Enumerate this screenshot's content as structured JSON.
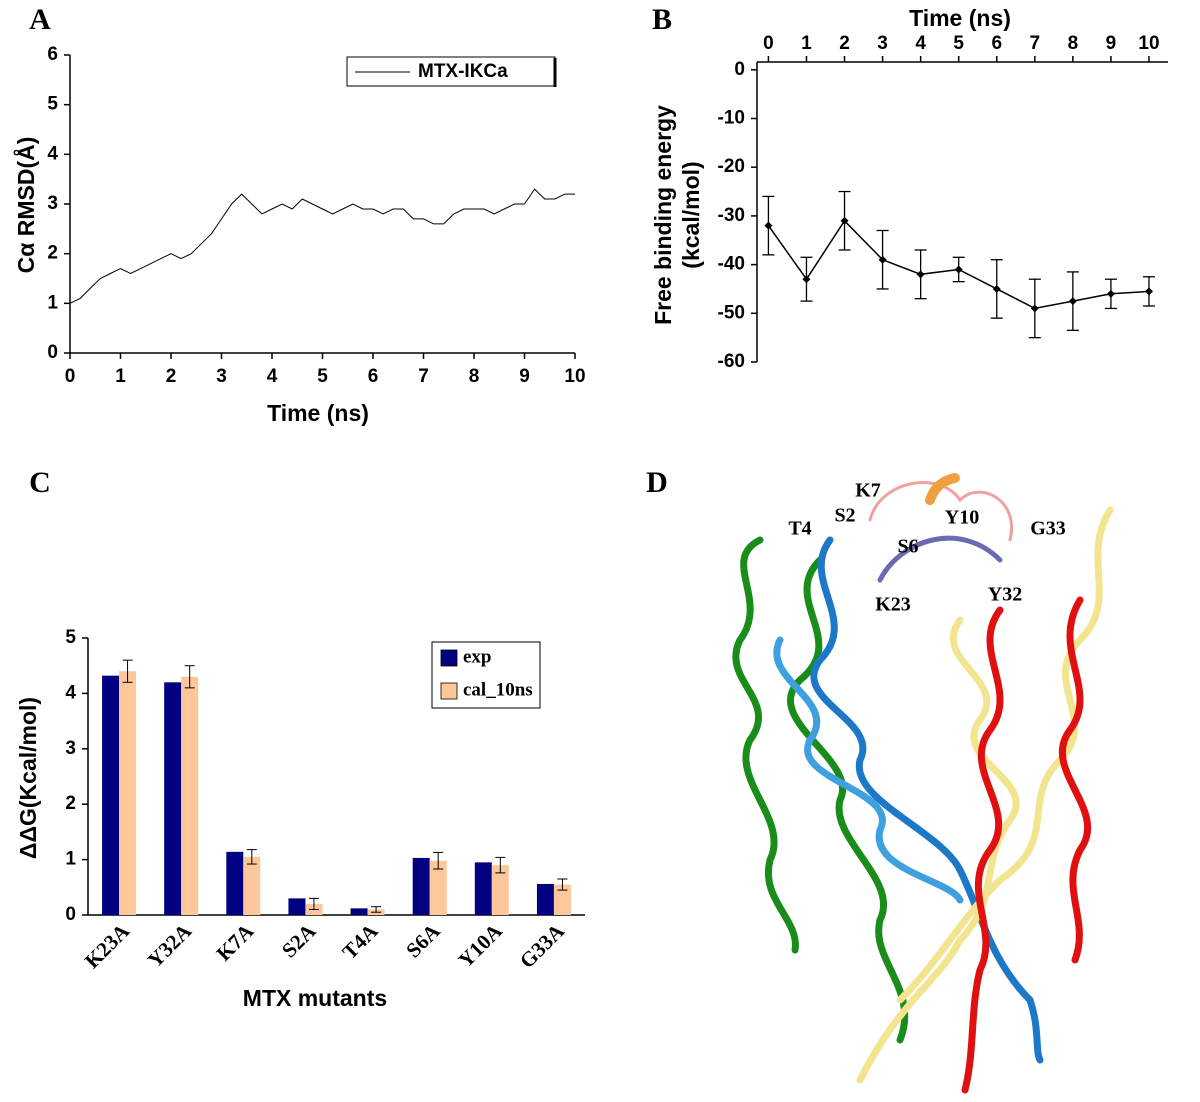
{
  "chart_data": [
    {
      "type": "line",
      "panel_label": "A",
      "xlabel": "Time (ns)",
      "ylabel": "Cα RMSD(Å)",
      "x": [
        0,
        0.2,
        0.4,
        0.6,
        0.8,
        1,
        1.2,
        1.4,
        1.6,
        1.8,
        2,
        2.2,
        2.4,
        2.6,
        2.8,
        3,
        3.2,
        3.4,
        3.6,
        3.8,
        4,
        4.2,
        4.4,
        4.6,
        4.8,
        5,
        5.2,
        5.4,
        5.6,
        5.8,
        6,
        6.2,
        6.4,
        6.6,
        6.8,
        7,
        7.2,
        7.4,
        7.6,
        7.8,
        8,
        8.2,
        8.4,
        8.6,
        8.8,
        9,
        9.2,
        9.4,
        9.6,
        9.8,
        10
      ],
      "series": [
        {
          "name": "MTX-IKCa",
          "color": "#000000",
          "values": [
            1.0,
            1.1,
            1.3,
            1.5,
            1.6,
            1.7,
            1.6,
            1.7,
            1.8,
            1.9,
            2.0,
            1.9,
            2.0,
            2.2,
            2.4,
            2.7,
            3.0,
            3.2,
            3.0,
            2.8,
            2.9,
            3.0,
            2.9,
            3.1,
            3.0,
            2.9,
            2.8,
            2.9,
            3.0,
            2.9,
            2.9,
            2.8,
            2.9,
            2.9,
            2.7,
            2.7,
            2.6,
            2.6,
            2.8,
            2.9,
            2.9,
            2.9,
            2.8,
            2.9,
            3.0,
            3.0,
            3.3,
            3.1,
            3.1,
            3.2,
            3.2
          ]
        }
      ],
      "xlim": [
        0,
        10
      ],
      "ylim": [
        0,
        6
      ],
      "xticks": [
        0,
        1,
        2,
        3,
        4,
        5,
        6,
        7,
        8,
        9,
        10
      ],
      "yticks": [
        0,
        1,
        2,
        3,
        4,
        5,
        6
      ],
      "legend": "upper right"
    },
    {
      "type": "line",
      "panel_label": "B",
      "xlabel": "Time (ns)",
      "ylabel": [
        "Free binding energy",
        "(kcal/mol)"
      ],
      "xaxis_position": "top",
      "x": [
        0,
        1,
        2,
        3,
        4,
        5,
        6,
        7,
        8,
        9,
        10
      ],
      "series": [
        {
          "color": "#000000",
          "values": [
            -32,
            -43,
            -31,
            -39,
            -42,
            -41,
            -45,
            -49,
            -47.5,
            -46,
            -45.5
          ],
          "errors": [
            6,
            4.5,
            6,
            6,
            5,
            2.5,
            6,
            6,
            6,
            3,
            3
          ]
        }
      ],
      "xlim": [
        -0.3,
        10.5
      ],
      "ylim": [
        -60,
        1.6
      ],
      "xticks": [
        0,
        1,
        2,
        3,
        4,
        5,
        6,
        7,
        8,
        9,
        10
      ],
      "yticks": [
        0,
        -10,
        -20,
        -30,
        -40,
        -50,
        -60
      ]
    },
    {
      "type": "bar",
      "panel_label": "C",
      "xlabel": "MTX mutants",
      "ylabel": "ΔΔG(Kcal/mol)",
      "categories": [
        "K23A",
        "Y32A",
        "K7A",
        "S2A",
        "T4A",
        "S6A",
        "Y10A",
        "G33A"
      ],
      "series": [
        {
          "name": "exp",
          "color": "#000080",
          "values": [
            4.32,
            4.2,
            1.14,
            0.3,
            0.12,
            1.03,
            0.95,
            0.56
          ]
        },
        {
          "name": "cal_10ns",
          "color": "#fcc89b",
          "values": [
            4.4,
            4.3,
            1.05,
            0.2,
            0.1,
            0.98,
            0.9,
            0.55
          ],
          "errors": [
            0.2,
            0.2,
            0.13,
            0.1,
            0.05,
            0.15,
            0.14,
            0.1
          ]
        }
      ],
      "ylim": [
        0,
        5
      ],
      "yticks": [
        0,
        1,
        2,
        3,
        4,
        5
      ],
      "legend": "right"
    }
  ],
  "structure": {
    "panel_label": "D",
    "labels": [
      "K7",
      "S2",
      "T4",
      "Y10",
      "G33",
      "S6",
      "K23",
      "Y32"
    ]
  }
}
